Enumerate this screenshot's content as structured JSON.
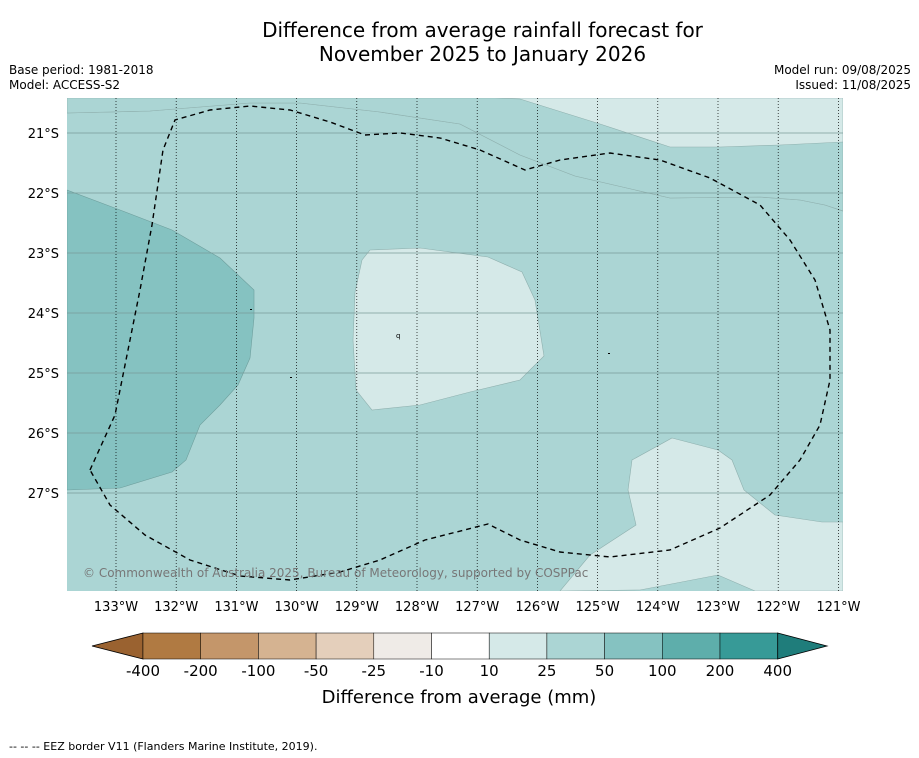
{
  "title_line1": "Difference from average rainfall forecast for",
  "title_line2": "November 2025 to January 2026",
  "base_period": "Base period: 1981-2018",
  "model": "Model: ACCESS-S2",
  "model_run": "Model run: 09/08/2025",
  "issued": "Issued: 11/08/2025",
  "copyright": "© Commonwealth of Australia 2025, Bureau of Meteorology, supported by COSPPac",
  "footnote": "--  --  -- EEZ border V11 (Flanders Marine Institute, 2019).",
  "lat_labels": [
    "21°S",
    "22°S",
    "23°S",
    "24°S",
    "25°S",
    "26°S",
    "27°S"
  ],
  "lon_labels": [
    "133°W",
    "132°W",
    "131°W",
    "130°W",
    "129°W",
    "128°W",
    "127°W",
    "126°W",
    "125°W",
    "124°W",
    "123°W",
    "122°W",
    "121°W"
  ],
  "colorbar": {
    "label": "Difference from average (mm)",
    "ticks": [
      "-400",
      "-200",
      "-100",
      "-50",
      "-25",
      "-10",
      "10",
      "25",
      "50",
      "100",
      "200",
      "400"
    ],
    "colors": [
      "#9a6230",
      "#b07a42",
      "#c4966a",
      "#d5b391",
      "#e4cfbb",
      "#efebe7",
      "#ffffff",
      "#d5e9e8",
      "#abd5d4",
      "#85c2c1",
      "#5eaeab",
      "#379a97",
      "#1f7d7b"
    ]
  }
}
